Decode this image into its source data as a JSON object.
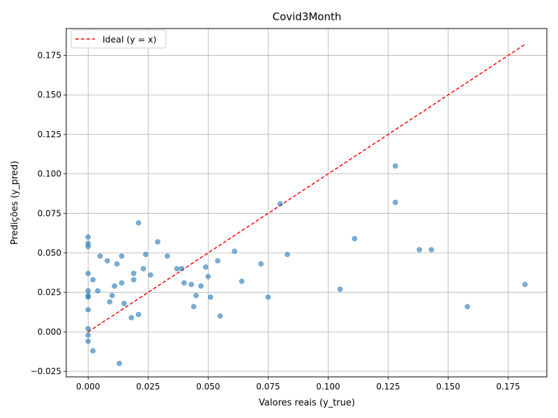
{
  "chart_data": {
    "type": "scatter",
    "title": "Covid3Month",
    "xlabel": "Valores reais (y_true)",
    "ylabel": "Predições (y_pred)",
    "xlim": [
      -0.0091,
      0.1911
    ],
    "ylim": [
      -0.0285,
      0.192
    ],
    "xticks": [
      0.0,
      0.025,
      0.05,
      0.075,
      0.1,
      0.125,
      0.15,
      0.175
    ],
    "xtick_labels": [
      "0.000",
      "0.025",
      "0.050",
      "0.075",
      "0.100",
      "0.125",
      "0.150",
      "0.175"
    ],
    "yticks": [
      -0.025,
      0.0,
      0.025,
      0.05,
      0.075,
      0.1,
      0.125,
      0.15,
      0.175
    ],
    "ytick_labels": [
      "−0.025",
      "0.000",
      "0.025",
      "0.050",
      "0.075",
      "0.100",
      "0.125",
      "0.150",
      "0.175"
    ],
    "grid": true,
    "legend_position": "top-left",
    "point_color": "#1f77b4",
    "series": [
      {
        "values": [
          [
            0.0,
            0.06
          ],
          [
            0.0,
            0.056
          ],
          [
            0.0,
            0.054
          ],
          [
            0.0,
            0.037
          ],
          [
            0.0,
            0.026
          ],
          [
            0.0,
            0.023
          ],
          [
            0.0,
            0.022
          ],
          [
            0.0,
            0.014
          ],
          [
            0.0,
            0.002
          ],
          [
            0.0,
            -0.002
          ],
          [
            0.0,
            -0.006
          ],
          [
            0.002,
            0.033
          ],
          [
            0.002,
            -0.012
          ],
          [
            0.004,
            0.026
          ],
          [
            0.005,
            0.048
          ],
          [
            0.008,
            0.045
          ],
          [
            0.009,
            0.019
          ],
          [
            0.01,
            0.023
          ],
          [
            0.011,
            0.029
          ],
          [
            0.012,
            0.043
          ],
          [
            0.013,
            -0.02
          ],
          [
            0.014,
            0.048
          ],
          [
            0.014,
            0.031
          ],
          [
            0.015,
            0.018
          ],
          [
            0.018,
            0.009
          ],
          [
            0.019,
            0.033
          ],
          [
            0.019,
            0.037
          ],
          [
            0.021,
            0.069
          ],
          [
            0.021,
            0.011
          ],
          [
            0.023,
            0.04
          ],
          [
            0.024,
            0.049
          ],
          [
            0.026,
            0.036
          ],
          [
            0.029,
            0.057
          ],
          [
            0.033,
            0.048
          ],
          [
            0.037,
            0.04
          ],
          [
            0.039,
            0.04
          ],
          [
            0.04,
            0.031
          ],
          [
            0.043,
            0.03
          ],
          [
            0.044,
            0.016
          ],
          [
            0.045,
            0.023
          ],
          [
            0.047,
            0.029
          ],
          [
            0.049,
            0.041
          ],
          [
            0.05,
            0.035
          ],
          [
            0.051,
            0.022
          ],
          [
            0.054,
            0.045
          ],
          [
            0.055,
            0.01
          ],
          [
            0.061,
            0.051
          ],
          [
            0.064,
            0.032
          ],
          [
            0.072,
            0.043
          ],
          [
            0.075,
            0.022
          ],
          [
            0.08,
            0.081
          ],
          [
            0.083,
            0.049
          ],
          [
            0.105,
            0.027
          ],
          [
            0.111,
            0.059
          ],
          [
            0.128,
            0.105
          ],
          [
            0.128,
            0.082
          ],
          [
            0.138,
            0.052
          ],
          [
            0.143,
            0.052
          ],
          [
            0.158,
            0.016
          ],
          [
            0.182,
            0.03
          ]
        ]
      }
    ],
    "ideal_line": {
      "label": "Ideal (y = x)",
      "color": "#ff0000",
      "from": [
        0.0,
        0.0
      ],
      "to": [
        0.182,
        0.182
      ]
    }
  }
}
